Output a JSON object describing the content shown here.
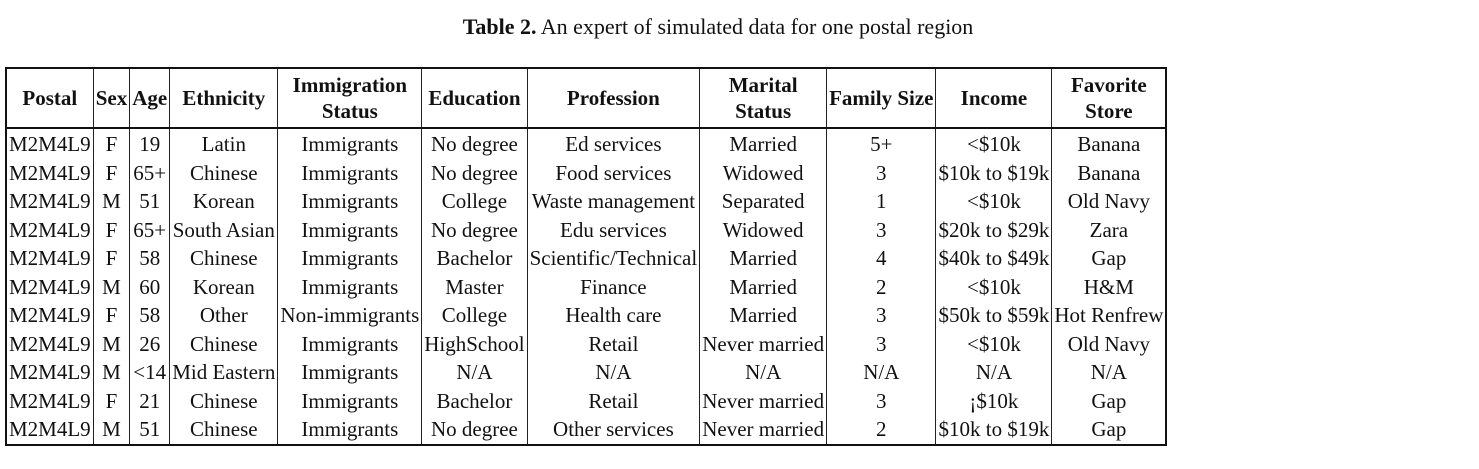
{
  "caption": {
    "label": "Table 2.",
    "text": "An expert of simulated data for one postal region"
  },
  "table": {
    "headers": [
      "Postal",
      "Sex",
      "Age",
      "Ethnicity",
      "Immigration Status",
      "Education",
      "Profession",
      "Marital Status",
      "Family Size",
      "Income",
      "Favorite Store"
    ],
    "rows": [
      [
        "M2M4L9",
        "F",
        "19",
        "Latin",
        "Immigrants",
        "No degree",
        "Ed services",
        "Married",
        "5+",
        "<$10k",
        "Banana"
      ],
      [
        "M2M4L9",
        "F",
        "65+",
        "Chinese",
        "Immigrants",
        "No degree",
        "Food services",
        "Widowed",
        "3",
        "$10k to $19k",
        "Banana"
      ],
      [
        "M2M4L9",
        "M",
        "51",
        "Korean",
        "Immigrants",
        "College",
        "Waste management",
        "Separated",
        "1",
        "<$10k",
        "Old Navy"
      ],
      [
        "M2M4L9",
        "F",
        "65+",
        "South Asian",
        "Immigrants",
        "No degree",
        "Edu services",
        "Widowed",
        "3",
        "$20k to $29k",
        "Zara"
      ],
      [
        "M2M4L9",
        "F",
        "58",
        "Chinese",
        "Immigrants",
        "Bachelor",
        "Scientific/Technical",
        "Married",
        "4",
        "$40k to $49k",
        "Gap"
      ],
      [
        "M2M4L9",
        "M",
        "60",
        "Korean",
        "Immigrants",
        "Master",
        "Finance",
        "Married",
        "2",
        "<$10k",
        "H&M"
      ],
      [
        "M2M4L9",
        "F",
        "58",
        "Other",
        "Non-immigrants",
        "College",
        "Health care",
        "Married",
        "3",
        "$50k to $59k",
        "Hot Renfrew"
      ],
      [
        "M2M4L9",
        "M",
        "26",
        "Chinese",
        "Immigrants",
        "HighSchool",
        "Retail",
        "Never married",
        "3",
        "<$10k",
        "Old Navy"
      ],
      [
        "M2M4L9",
        "M",
        "<14",
        "Mid Eastern",
        "Immigrants",
        "N/A",
        "N/A",
        "N/A",
        "N/A",
        "N/A",
        "N/A"
      ],
      [
        "M2M4L9",
        "F",
        "21",
        "Chinese",
        "Immigrants",
        "Bachelor",
        "Retail",
        "Never married",
        "3",
        "¡$10k",
        "Gap"
      ],
      [
        "M2M4L9",
        "M",
        "51",
        "Chinese",
        "Immigrants",
        "No degree",
        "Other services",
        "Never married",
        "2",
        "$10k to $19k",
        "Gap"
      ]
    ]
  }
}
